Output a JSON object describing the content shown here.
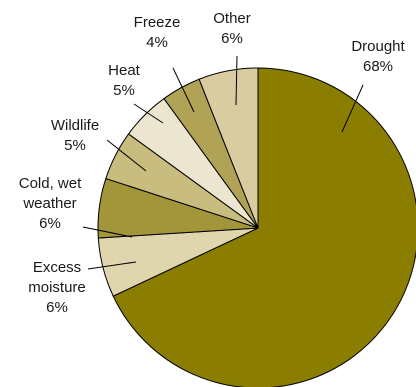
{
  "chart_data": {
    "type": "pie",
    "start_angle_deg": 0,
    "direction": "clockwise",
    "slices": [
      {
        "name": "Drought",
        "label_lines": [
          "Drought"
        ],
        "value_label": "68%",
        "value": 68,
        "color": "#8B7D00"
      },
      {
        "name": "Excess moisture",
        "label_lines": [
          "Excess",
          "moisture"
        ],
        "value_label": "6%",
        "value": 6,
        "color": "#E0D6AE"
      },
      {
        "name": "Cold, wet weather",
        "label_lines": [
          "Cold, wet",
          "weather"
        ],
        "value_label": "6%",
        "value": 6,
        "color": "#A3953A"
      },
      {
        "name": "Wildlife",
        "label_lines": [
          "Wildlife"
        ],
        "value_label": "5%",
        "value": 5,
        "color": "#C9BC7F"
      },
      {
        "name": "Heat",
        "label_lines": [
          "Heat"
        ],
        "value_label": "5%",
        "value": 5,
        "color": "#ECE6D0"
      },
      {
        "name": "Freeze",
        "label_lines": [
          "Freeze"
        ],
        "value_label": "4%",
        "value": 4,
        "color": "#B0A355"
      },
      {
        "name": "Other",
        "label_lines": [
          "Other"
        ],
        "value_label": "6%",
        "value": 6,
        "color": "#D9CCA0"
      }
    ]
  }
}
